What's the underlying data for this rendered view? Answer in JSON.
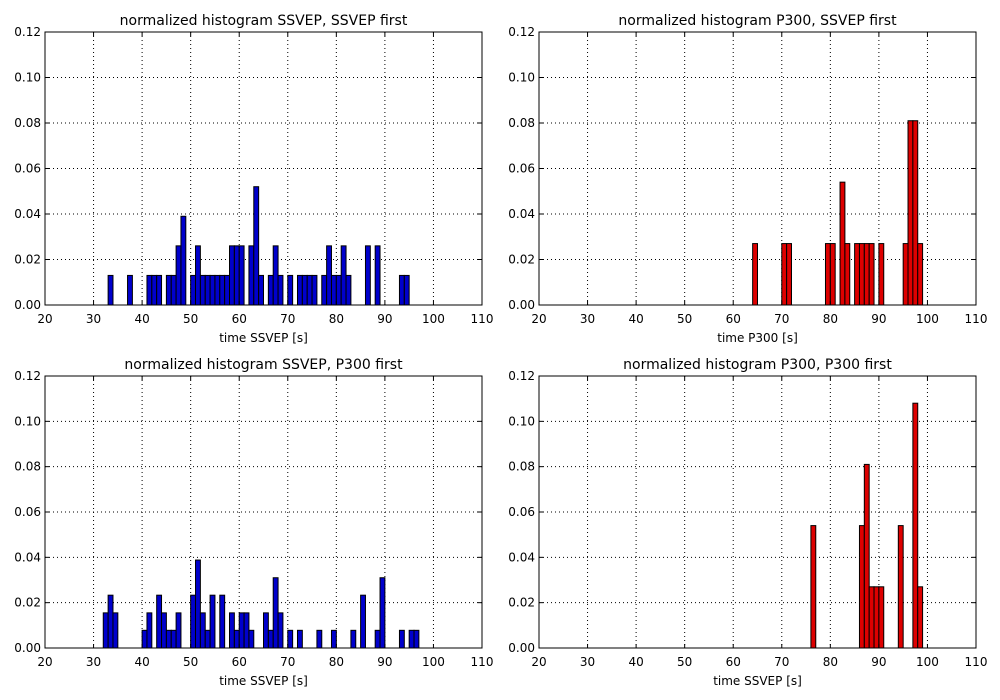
{
  "chart_data": [
    {
      "type": "bar",
      "title": "normalized histogram SSVEP, SSVEP first",
      "xlabel": "time SSVEP [s]",
      "ylabel": "",
      "xlim": [
        20,
        110
      ],
      "ylim": [
        0,
        0.12
      ],
      "xticks": [
        "20",
        "30",
        "40",
        "50",
        "60",
        "70",
        "80",
        "90",
        "100",
        "110"
      ],
      "yticks": [
        "0.00",
        "0.02",
        "0.04",
        "0.06",
        "0.08",
        "0.10",
        "0.12"
      ],
      "grid": true,
      "color": "#0000cc",
      "bin_width": 1,
      "bins": [
        [
          33,
          0.013
        ],
        [
          37,
          0.013
        ],
        [
          41,
          0.013
        ],
        [
          42,
          0.013
        ],
        [
          43,
          0.013
        ],
        [
          45,
          0.013
        ],
        [
          46,
          0.013
        ],
        [
          47,
          0.026
        ],
        [
          48,
          0.039
        ],
        [
          50,
          0.013
        ],
        [
          51,
          0.026
        ],
        [
          52,
          0.013
        ],
        [
          53,
          0.013
        ],
        [
          54,
          0.013
        ],
        [
          55,
          0.013
        ],
        [
          56,
          0.013
        ],
        [
          57,
          0.013
        ],
        [
          58,
          0.026
        ],
        [
          59,
          0.026
        ],
        [
          60,
          0.026
        ],
        [
          62,
          0.026
        ],
        [
          63,
          0.052
        ],
        [
          64,
          0.013
        ],
        [
          66,
          0.013
        ],
        [
          67,
          0.026
        ],
        [
          68,
          0.013
        ],
        [
          70,
          0.013
        ],
        [
          72,
          0.013
        ],
        [
          73,
          0.013
        ],
        [
          74,
          0.013
        ],
        [
          75,
          0.013
        ],
        [
          77,
          0.013
        ],
        [
          78,
          0.026
        ],
        [
          79,
          0.013
        ],
        [
          80,
          0.013
        ],
        [
          81,
          0.026
        ],
        [
          82,
          0.013
        ],
        [
          86,
          0.026
        ],
        [
          88,
          0.026
        ],
        [
          93,
          0.013
        ],
        [
          94,
          0.013
        ]
      ]
    },
    {
      "type": "bar",
      "title": "normalized histogram P300, SSVEP first",
      "xlabel": "time P300 [s]",
      "ylabel": "",
      "xlim": [
        20,
        110
      ],
      "ylim": [
        0,
        0.12
      ],
      "xticks": [
        "20",
        "30",
        "40",
        "50",
        "60",
        "70",
        "80",
        "90",
        "100",
        "110"
      ],
      "yticks": [
        "0.00",
        "0.02",
        "0.04",
        "0.06",
        "0.08",
        "0.10",
        "0.12"
      ],
      "grid": true,
      "color": "#dd0000",
      "bin_width": 1,
      "bins": [
        [
          64,
          0.027
        ],
        [
          70,
          0.027
        ],
        [
          71,
          0.027
        ],
        [
          79,
          0.027
        ],
        [
          80,
          0.027
        ],
        [
          82,
          0.054
        ],
        [
          83,
          0.027
        ],
        [
          85,
          0.027
        ],
        [
          86,
          0.027
        ],
        [
          87,
          0.027
        ],
        [
          88,
          0.027
        ],
        [
          90,
          0.027
        ],
        [
          95,
          0.027
        ],
        [
          96,
          0.081
        ],
        [
          97,
          0.081
        ],
        [
          98,
          0.027
        ]
      ]
    },
    {
      "type": "bar",
      "title": "normalized histogram SSVEP, P300 first",
      "xlabel": "time SSVEP [s]",
      "ylabel": "",
      "xlim": [
        20,
        110
      ],
      "ylim": [
        0,
        0.12
      ],
      "xticks": [
        "20",
        "30",
        "40",
        "50",
        "60",
        "70",
        "80",
        "90",
        "100",
        "110"
      ],
      "yticks": [
        "0.00",
        "0.02",
        "0.04",
        "0.06",
        "0.08",
        "0.10",
        "0.12"
      ],
      "grid": true,
      "color": "#0000cc",
      "bin_width": 1,
      "bins": [
        [
          32,
          0.0155
        ],
        [
          33,
          0.0233
        ],
        [
          34,
          0.0155
        ],
        [
          40,
          0.0078
        ],
        [
          41,
          0.0155
        ],
        [
          43,
          0.0233
        ],
        [
          44,
          0.0155
        ],
        [
          45,
          0.0078
        ],
        [
          46,
          0.0078
        ],
        [
          47,
          0.0155
        ],
        [
          50,
          0.0233
        ],
        [
          51,
          0.0388
        ],
        [
          52,
          0.0155
        ],
        [
          53,
          0.0078
        ],
        [
          54,
          0.0233
        ],
        [
          56,
          0.0233
        ],
        [
          58,
          0.0155
        ],
        [
          59,
          0.0078
        ],
        [
          60,
          0.0155
        ],
        [
          61,
          0.0155
        ],
        [
          62,
          0.0078
        ],
        [
          65,
          0.0155
        ],
        [
          66,
          0.0078
        ],
        [
          67,
          0.031
        ],
        [
          68,
          0.0155
        ],
        [
          70,
          0.0078
        ],
        [
          72,
          0.0078
        ],
        [
          76,
          0.0078
        ],
        [
          79,
          0.0078
        ],
        [
          83,
          0.0078
        ],
        [
          85,
          0.0233
        ],
        [
          88,
          0.0078
        ],
        [
          89,
          0.031
        ],
        [
          93,
          0.0078
        ],
        [
          95,
          0.0078
        ],
        [
          96,
          0.0078
        ]
      ]
    },
    {
      "type": "bar",
      "title": "normalized histogram P300, P300 first",
      "xlabel": "time SSVEP [s]",
      "ylabel": "",
      "xlim": [
        20,
        110
      ],
      "ylim": [
        0,
        0.12
      ],
      "xticks": [
        "20",
        "30",
        "40",
        "50",
        "60",
        "70",
        "80",
        "90",
        "100",
        "110"
      ],
      "yticks": [
        "0.00",
        "0.02",
        "0.04",
        "0.06",
        "0.08",
        "0.10",
        "0.12"
      ],
      "grid": true,
      "color": "#dd0000",
      "bin_width": 1,
      "bins": [
        [
          76,
          0.054
        ],
        [
          86,
          0.054
        ],
        [
          87,
          0.081
        ],
        [
          88,
          0.027
        ],
        [
          89,
          0.027
        ],
        [
          90,
          0.027
        ],
        [
          94,
          0.054
        ],
        [
          97,
          0.108
        ],
        [
          98,
          0.027
        ]
      ]
    }
  ]
}
